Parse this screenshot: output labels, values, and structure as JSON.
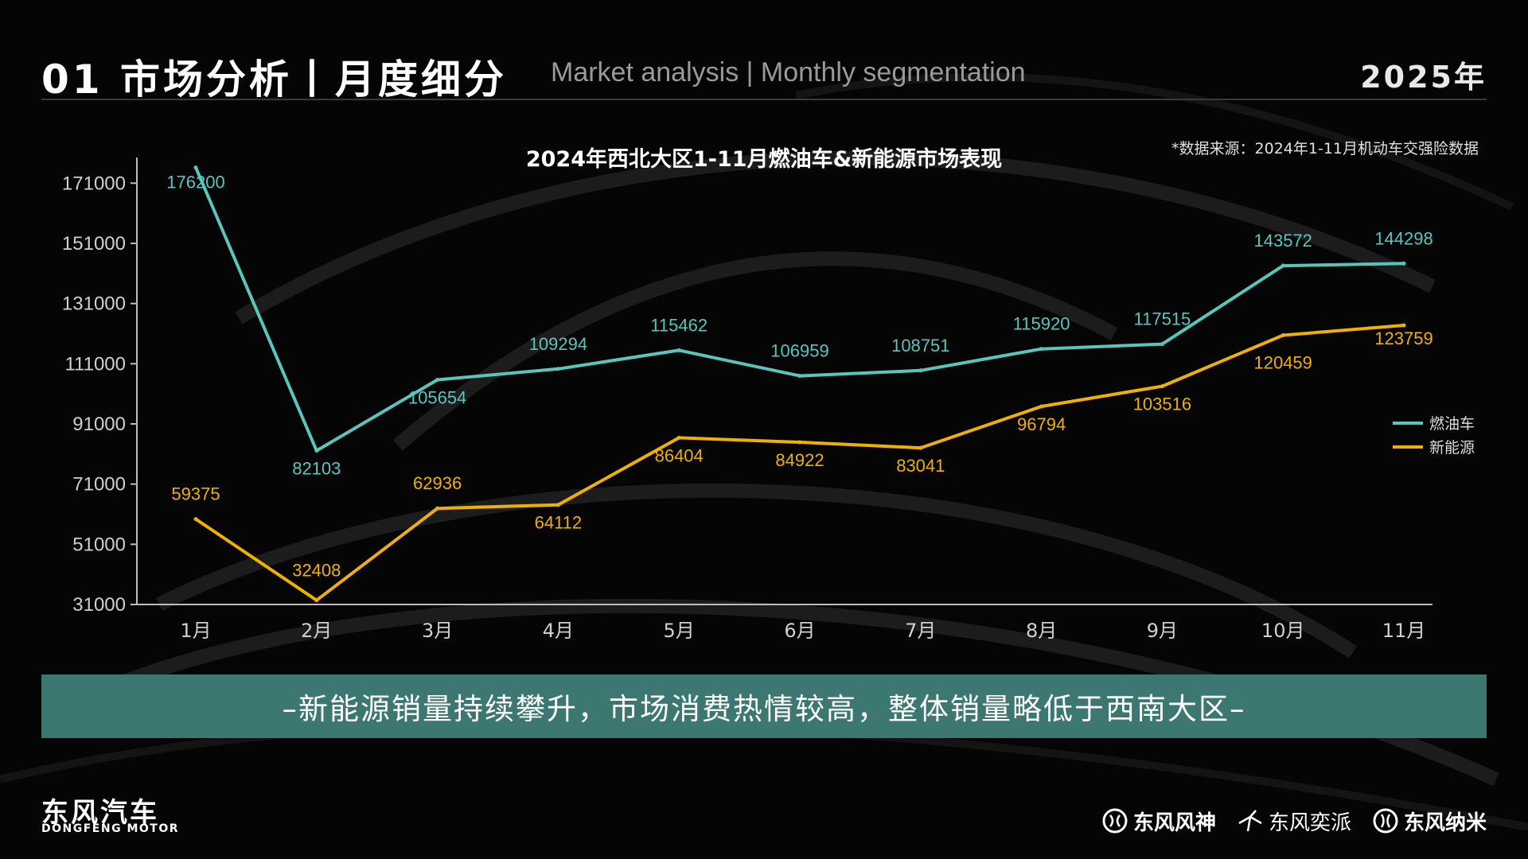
{
  "header": {
    "title_cn": "01 市场分析丨月度细分",
    "title_en": "Market analysis | Monthly segmentation",
    "year": "2025年"
  },
  "chart_data": {
    "type": "line",
    "title": "2024年西北大区1-11月燃油车&新能源市场表现",
    "source_note": "*数据来源：2024年1-11月机动车交强险数据",
    "categories": [
      "1月",
      "2月",
      "3月",
      "4月",
      "5月",
      "6月",
      "7月",
      "8月",
      "9月",
      "10月",
      "11月"
    ],
    "yticks": [
      "171000",
      "151000",
      "131000",
      "111000",
      "91000",
      "71000",
      "51000",
      "31000"
    ],
    "ylim": [
      31000,
      179000
    ],
    "grid": false,
    "legend_position": "right",
    "series": [
      {
        "name": "燃油车",
        "color": "#58c6bd",
        "values": [
          176200,
          82103,
          105654,
          109294,
          115462,
          106959,
          108751,
          115920,
          117515,
          143572,
          144298
        ],
        "labels": [
          "176200",
          "82103",
          "105654",
          "109294",
          "115462",
          "106959",
          "108751",
          "115920",
          "117515",
          "143572",
          "144298"
        ]
      },
      {
        "name": "新能源",
        "color": "#f0b000",
        "values": [
          59375,
          32408,
          62936,
          64112,
          86404,
          84922,
          83041,
          96794,
          103516,
          120459,
          123759
        ],
        "labels": [
          "59375",
          "32408",
          "62936",
          "64112",
          "86404",
          "84922",
          "83041",
          "96794",
          "103516",
          "120459",
          "123759"
        ]
      }
    ]
  },
  "banner": {
    "text": "–新能源销量持续攀升，市场消费热情较高，整体销量略低于西南大区–",
    "color": "#3d7772"
  },
  "footer": {
    "logo_cn": "东风汽车",
    "logo_en": "DONGFENG MOTOR",
    "brands": [
      "东风风神",
      "东风奕派",
      "东风纳米"
    ],
    "brand_icons": [
      "dongfeng-fengshen-icon",
      "dongfeng-yipai-icon",
      "dongfeng-nami-icon"
    ]
  }
}
